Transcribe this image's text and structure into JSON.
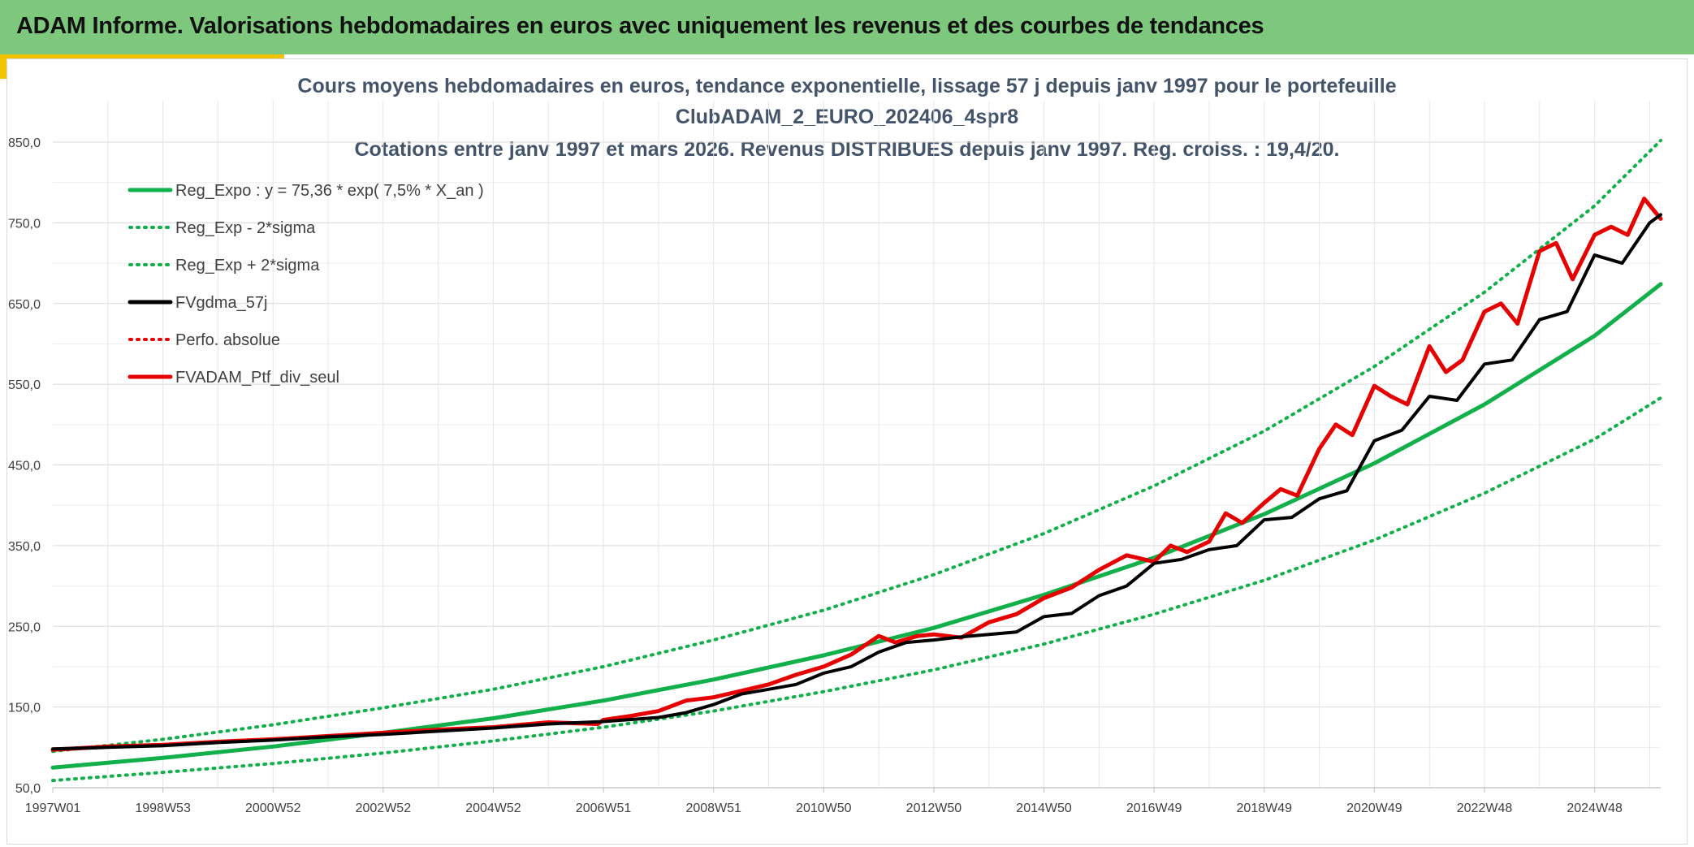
{
  "header": {
    "title": "ADAM Informe. Valorisations hebdomadaires en euros avec uniquement les revenus et des courbes de tendances"
  },
  "colors": {
    "header_bg": "#7dc87d",
    "accent": "#f2c200",
    "reg_green": "#12b04a",
    "red": "#e60000",
    "black": "#000000",
    "grid": "#d9d9d9",
    "title_text": "#44546a"
  },
  "chart_data": {
    "type": "line",
    "title_lines": [
      "Cours moyens hebdomadaires en euros, tendance exponentielle, lissage 57 j depuis janv 1997 pour le portefeuille",
      "ClubADAM_2_EURO_202406_4spr8",
      "Cotations entre janv 1997 et mars 2026. Revenus DISTRIBUES depuis janv 1997. Reg. croiss. : 19,4/20."
    ],
    "ylim": [
      50,
      900
    ],
    "y_ticks": [
      "50,0",
      "150,0",
      "250,0",
      "350,0",
      "450,0",
      "550,0",
      "650,0",
      "750,0",
      "850,0"
    ],
    "y_tick_values": [
      50,
      150,
      250,
      350,
      450,
      550,
      650,
      750,
      850
    ],
    "x_ticks": [
      "1997W01",
      "1998W53",
      "2000W52",
      "2002W52",
      "2004W52",
      "2006W51",
      "2008W51",
      "2010W50",
      "2012W50",
      "2014W50",
      "2016W49",
      "2018W49",
      "2020W49",
      "2022W48",
      "2024W48"
    ],
    "x_tick_years": [
      1997.0,
      1999.0,
      2001.0,
      2003.0,
      2005.0,
      2007.0,
      2009.0,
      2011.0,
      2013.0,
      2015.0,
      2017.0,
      2019.0,
      2021.0,
      2023.0,
      2025.0
    ],
    "xlim": [
      1997.0,
      2026.2
    ],
    "grid": true,
    "legend_position": "top-left",
    "legend": [
      {
        "label": "Reg_Expo : y = 75,36 * exp( 7,5% *  X_an )",
        "color": "#12b04a",
        "style": "solid"
      },
      {
        "label": "Reg_Exp - 2*sigma",
        "color": "#12b04a",
        "style": "dotted"
      },
      {
        "label": "Reg_Exp + 2*sigma",
        "color": "#12b04a",
        "style": "dotted"
      },
      {
        "label": "FVgdma_57j",
        "color": "#000000",
        "style": "solid"
      },
      {
        "label": "Perfo. absolue",
        "color": "#e60000",
        "style": "dotted"
      },
      {
        "label": "FVADAM_Ptf_div_seul",
        "color": "#e60000",
        "style": "solid"
      }
    ],
    "series": [
      {
        "name": "Reg_Expo : y = 75,36 * exp( 7,5% *  X_an )",
        "x": [
          1997.0,
          1999.0,
          2001.0,
          2003.0,
          2005.0,
          2007.0,
          2009.0,
          2011.0,
          2013.0,
          2015.0,
          2017.0,
          2019.0,
          2021.0,
          2023.0,
          2025.0,
          2026.2
        ],
        "values": [
          75,
          87,
          101,
          118,
          136,
          158,
          184,
          214,
          248,
          289,
          335,
          389,
          452,
          525,
          610,
          674
        ]
      },
      {
        "name": "Reg_Exp - 2*sigma",
        "x": [
          1997.0,
          1999.0,
          2001.0,
          2003.0,
          2005.0,
          2007.0,
          2009.0,
          2011.0,
          2013.0,
          2015.0,
          2017.0,
          2019.0,
          2021.0,
          2023.0,
          2025.0,
          2026.2
        ],
        "values": [
          59,
          69,
          80,
          93,
          108,
          125,
          145,
          169,
          196,
          228,
          265,
          307,
          357,
          415,
          482,
          533
        ]
      },
      {
        "name": "Reg_Exp + 2*sigma",
        "x": [
          1997.0,
          1999.0,
          2001.0,
          2003.0,
          2005.0,
          2007.0,
          2009.0,
          2011.0,
          2013.0,
          2015.0,
          2017.0,
          2019.0,
          2021.0,
          2023.0,
          2025.0,
          2026.2
        ],
        "values": [
          95,
          110,
          128,
          149,
          172,
          200,
          233,
          270,
          314,
          365,
          424,
          492,
          572,
          664,
          771,
          852
        ]
      },
      {
        "name": "FVgdma_57j",
        "x": [
          1997.0,
          1998.0,
          1999.0,
          2000.0,
          2001.0,
          2002.0,
          2003.0,
          2004.0,
          2005.0,
          2006.0,
          2007.0,
          2008.0,
          2008.5,
          2009.0,
          2009.5,
          2010.0,
          2010.5,
          2011.0,
          2011.5,
          2012.0,
          2012.5,
          2013.0,
          2013.5,
          2014.0,
          2014.5,
          2015.0,
          2015.5,
          2016.0,
          2016.5,
          2017.0,
          2017.5,
          2018.0,
          2018.5,
          2019.0,
          2019.5,
          2020.0,
          2020.5,
          2021.0,
          2021.5,
          2022.0,
          2022.5,
          2023.0,
          2023.5,
          2024.0,
          2024.5,
          2025.0,
          2025.5,
          2026.0,
          2026.2
        ],
        "values": [
          98,
          100,
          102,
          106,
          109,
          113,
          116,
          120,
          124,
          129,
          132,
          137,
          143,
          153,
          166,
          172,
          178,
          192,
          200,
          218,
          230,
          233,
          237,
          240,
          243,
          262,
          266,
          288,
          300,
          328,
          333,
          345,
          350,
          382,
          385,
          408,
          418,
          480,
          493,
          535,
          530,
          575,
          580,
          630,
          640,
          710,
          700,
          750,
          760
        ]
      },
      {
        "name": "FVADAM_Ptf_div_seul",
        "x": [
          1997.0,
          1998.0,
          1999.0,
          2000.0,
          2001.0,
          2002.0,
          2003.0,
          2004.0,
          2005.0,
          2006.0,
          2006.9,
          2007.0,
          2007.5,
          2008.0,
          2008.5,
          2009.0,
          2009.5,
          2010.0,
          2010.5,
          2011.0,
          2011.5,
          2012.0,
          2012.3,
          2012.7,
          2013.0,
          2013.5,
          2014.0,
          2014.5,
          2015.0,
          2015.5,
          2016.0,
          2016.5,
          2017.0,
          2017.3,
          2017.6,
          2018.0,
          2018.3,
          2018.6,
          2019.0,
          2019.3,
          2019.6,
          2020.0,
          2020.3,
          2020.6,
          2021.0,
          2021.3,
          2021.6,
          2022.0,
          2022.3,
          2022.6,
          2023.0,
          2023.3,
          2023.6,
          2024.0,
          2024.3,
          2024.6,
          2025.0,
          2025.3,
          2025.6,
          2025.9,
          2026.2
        ],
        "values": [
          97,
          101,
          103,
          107,
          110,
          114,
          118,
          122,
          125,
          131,
          129,
          134,
          139,
          145,
          158,
          162,
          170,
          178,
          190,
          200,
          215,
          238,
          230,
          238,
          240,
          236,
          255,
          265,
          285,
          298,
          320,
          338,
          330,
          350,
          342,
          355,
          390,
          378,
          403,
          420,
          412,
          470,
          500,
          487,
          548,
          535,
          525,
          597,
          565,
          580,
          640,
          650,
          625,
          715,
          725,
          680,
          735,
          745,
          735,
          780,
          755
        ]
      }
    ]
  }
}
